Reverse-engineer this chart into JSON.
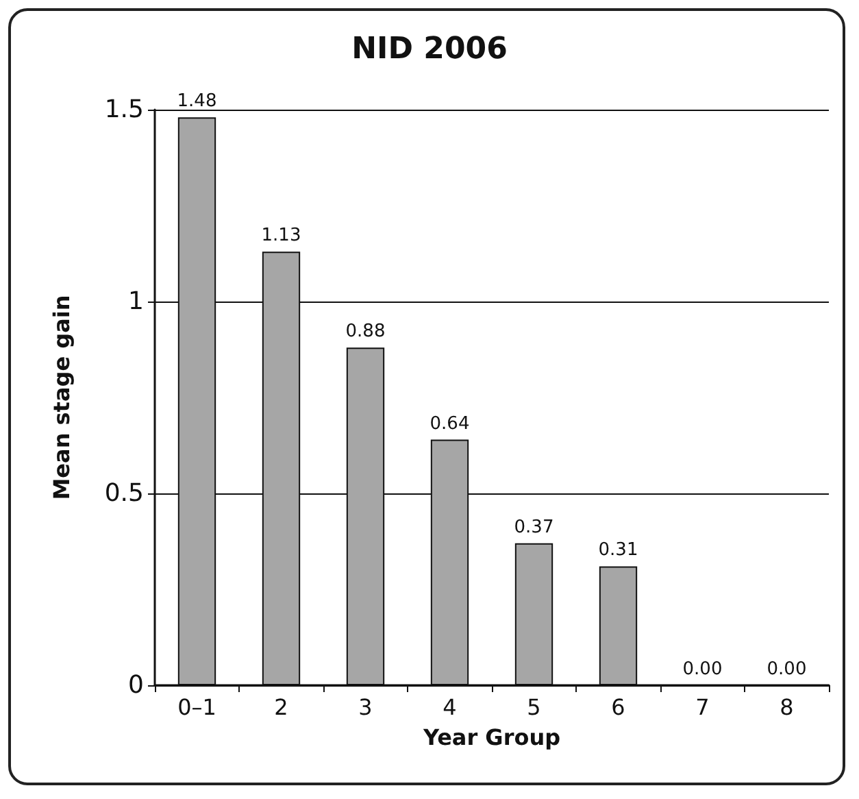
{
  "chart_data": {
    "type": "bar",
    "title": "NID 2006",
    "xlabel": "Year Group",
    "ylabel": "Mean stage gain",
    "categories": [
      "0–1",
      "2",
      "3",
      "4",
      "5",
      "6",
      "7",
      "8"
    ],
    "values": [
      1.48,
      1.13,
      0.88,
      0.64,
      0.37,
      0.31,
      0,
      0
    ],
    "value_labels": [
      "1.48",
      "1.13",
      "0.88",
      "0.64",
      "0.37",
      "0.31",
      "0.00",
      "0.00"
    ],
    "color": "#a6a6a6",
    "ylim": [
      0,
      1.5
    ],
    "yticks": [
      0,
      0.5,
      1,
      1.5
    ],
    "grid": "y"
  }
}
